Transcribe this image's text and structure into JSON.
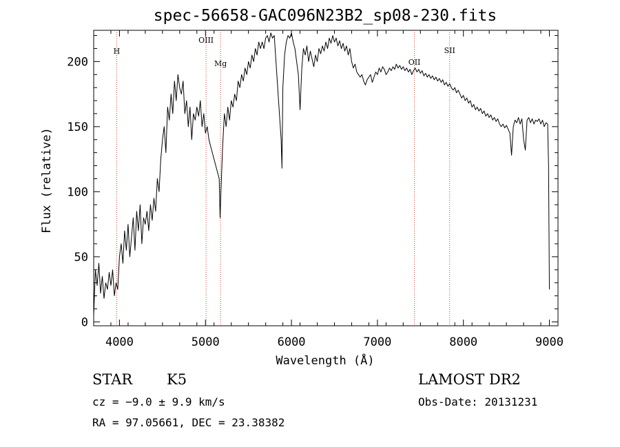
{
  "chart_data": {
    "type": "line",
    "title": "spec-56658-GAC096N23B2_sp08-230.fits",
    "xlabel": "Wavelength (Å)",
    "ylabel": "Flux (relative)",
    "xlim": [
      3700,
      9100
    ],
    "ylim": [
      -3,
      224
    ],
    "x_ticks": [
      4000,
      5000,
      6000,
      7000,
      8000,
      9000
    ],
    "y_ticks": [
      0,
      50,
      100,
      150,
      200
    ],
    "grid": false,
    "lines": [
      {
        "label": "H",
        "x": 3968
      },
      {
        "label": "OIII",
        "x": 5007
      },
      {
        "label": "Mg",
        "x": 5175
      },
      {
        "label": "OII",
        "x": 7430
      },
      {
        "label": "SII",
        "x": 7840
      }
    ],
    "series": [
      {
        "x": [
          3700,
          3720,
          3740,
          3760,
          3780,
          3800,
          3820,
          3840,
          3860,
          3880,
          3900,
          3920,
          3940,
          3960,
          3980,
          4000,
          4020,
          4040,
          4060,
          4080,
          4100,
          4120,
          4140,
          4160,
          4180,
          4200,
          4220,
          4240,
          4260,
          4280,
          4300,
          4320,
          4340,
          4360,
          4380,
          4400,
          4420,
          4440,
          4460,
          4480,
          4500,
          4520,
          4540,
          4560,
          4580,
          4600,
          4620,
          4640,
          4660,
          4680,
          4700,
          4720,
          4740,
          4760,
          4780,
          4800,
          4820,
          4840,
          4860,
          4880,
          4900,
          4920,
          4940,
          4960,
          4980,
          5000,
          5020,
          5040,
          5060,
          5080,
          5100,
          5120,
          5140,
          5160,
          5170,
          5180,
          5200,
          5220,
          5240,
          5260,
          5280,
          5300,
          5320,
          5340,
          5360,
          5380,
          5400,
          5420,
          5440,
          5460,
          5480,
          5500,
          5520,
          5540,
          5560,
          5580,
          5600,
          5620,
          5640,
          5660,
          5680,
          5700,
          5720,
          5740,
          5760,
          5780,
          5800,
          5820,
          5840,
          5860,
          5880,
          5890,
          5900,
          5920,
          5940,
          5960,
          5980,
          6000,
          6020,
          6040,
          6060,
          6080,
          6100,
          6120,
          6140,
          6160,
          6180,
          6200,
          6220,
          6240,
          6260,
          6280,
          6300,
          6320,
          6340,
          6360,
          6380,
          6400,
          6420,
          6440,
          6460,
          6480,
          6500,
          6520,
          6540,
          6560,
          6580,
          6600,
          6620,
          6640,
          6660,
          6680,
          6700,
          6720,
          6740,
          6760,
          6780,
          6800,
          6820,
          6840,
          6860,
          6880,
          6900,
          6920,
          6940,
          6960,
          6980,
          7000,
          7020,
          7040,
          7060,
          7080,
          7100,
          7120,
          7140,
          7160,
          7180,
          7200,
          7220,
          7240,
          7260,
          7280,
          7300,
          7320,
          7340,
          7360,
          7380,
          7400,
          7420,
          7440,
          7460,
          7480,
          7500,
          7520,
          7540,
          7560,
          7580,
          7600,
          7620,
          7640,
          7660,
          7680,
          7700,
          7720,
          7740,
          7760,
          7780,
          7800,
          7820,
          7840,
          7860,
          7880,
          7900,
          7920,
          7940,
          7960,
          7980,
          8000,
          8020,
          8040,
          8060,
          8080,
          8100,
          8120,
          8140,
          8160,
          8180,
          8200,
          8220,
          8240,
          8260,
          8280,
          8300,
          8320,
          8340,
          8360,
          8380,
          8400,
          8420,
          8440,
          8460,
          8480,
          8500,
          8520,
          8540,
          8560,
          8580,
          8600,
          8620,
          8640,
          8660,
          8680,
          8700,
          8720,
          8740,
          8760,
          8780,
          8800,
          8820,
          8840,
          8860,
          8880,
          8900,
          8920,
          8940,
          8960,
          8980,
          8990,
          9000
        ],
        "y": [
          5,
          40,
          28,
          45,
          22,
          35,
          18,
          30,
          25,
          38,
          28,
          40,
          20,
          30,
          25,
          50,
          60,
          45,
          70,
          55,
          75,
          50,
          65,
          80,
          55,
          85,
          70,
          90,
          60,
          80,
          75,
          85,
          70,
          90,
          78,
          95,
          85,
          110,
          100,
          125,
          140,
          150,
          130,
          165,
          155,
          175,
          160,
          185,
          170,
          190,
          180,
          175,
          185,
          160,
          170,
          150,
          165,
          140,
          160,
          155,
          165,
          158,
          170,
          150,
          160,
          145,
          150,
          140,
          135,
          130,
          125,
          120,
          115,
          110,
          80,
          100,
          135,
          160,
          150,
          165,
          155,
          170,
          165,
          175,
          170,
          185,
          180,
          190,
          185,
          195,
          190,
          200,
          195,
          205,
          200,
          210,
          205,
          215,
          210,
          215,
          210,
          218,
          220,
          215,
          222,
          218,
          220,
          200,
          180,
          160,
          140,
          118,
          180,
          205,
          215,
          220,
          218,
          222,
          215,
          210,
          200,
          190,
          163,
          195,
          210,
          205,
          212,
          200,
          208,
          202,
          196,
          205,
          200,
          210,
          206,
          212,
          208,
          215,
          210,
          218,
          214,
          220,
          215,
          218,
          212,
          216,
          210,
          214,
          208,
          212,
          205,
          210,
          200,
          195,
          198,
          192,
          190,
          188,
          190,
          185,
          182,
          186,
          188,
          190,
          184,
          188,
          192,
          190,
          195,
          192,
          196,
          194,
          190,
          192,
          195,
          193,
          196,
          194,
          198,
          195,
          197,
          194,
          196,
          193,
          195,
          192,
          194,
          190,
          193,
          195,
          192,
          194,
          191,
          193,
          189,
          191,
          188,
          190,
          187,
          189,
          186,
          188,
          185,
          187,
          184,
          186,
          182,
          184,
          181,
          183,
          180,
          178,
          180,
          176,
          178,
          175,
          172,
          174,
          170,
          172,
          168,
          170,
          165,
          167,
          163,
          165,
          162,
          164,
          160,
          162,
          158,
          160,
          157,
          159,
          155,
          157,
          154,
          156,
          152,
          150,
          152,
          149,
          151,
          148,
          145,
          128,
          150,
          155,
          153,
          157,
          152,
          156,
          140,
          132,
          155,
          157,
          153,
          156,
          152,
          155,
          154,
          156,
          152,
          155,
          150,
          153,
          152,
          120,
          25
        ]
      }
    ]
  },
  "footer": {
    "class_label": "STAR",
    "subclass_label": "K5",
    "cz_text": "cz = −9.0 ± 9.9 km/s",
    "radec_text": "RA =  97.05661, DEC =  23.38382",
    "survey_label": "LAMOST DR2",
    "obs_date_text": "Obs-Date: 20131231"
  }
}
